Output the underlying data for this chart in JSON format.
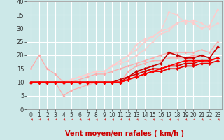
{
  "xlabel": "Vent moyen/en rafales ( km/h )",
  "xlim": [
    -0.5,
    23.5
  ],
  "ylim": [
    0,
    40
  ],
  "xticks": [
    0,
    1,
    2,
    3,
    4,
    5,
    6,
    7,
    8,
    9,
    10,
    11,
    12,
    13,
    14,
    15,
    16,
    17,
    18,
    19,
    20,
    21,
    22,
    23
  ],
  "yticks": [
    0,
    5,
    10,
    15,
    20,
    25,
    30,
    35,
    40
  ],
  "bg_color": "#cce8e8",
  "grid_color": "#b0d4d4",
  "lines": [
    {
      "x": [
        0,
        1,
        2,
        3,
        4,
        5,
        6,
        7,
        8,
        9,
        10,
        11,
        12,
        13,
        14,
        15,
        16,
        17,
        18,
        19,
        20,
        21,
        22,
        23
      ],
      "y": [
        15,
        20,
        15,
        13,
        10,
        10,
        10,
        10,
        10,
        10,
        10,
        10,
        14,
        16,
        17,
        18,
        18,
        19,
        19,
        19,
        20,
        20,
        19,
        23
      ],
      "color": "#ffaaaa",
      "lw": 0.9,
      "marker": "D",
      "ms": 2.0
    },
    {
      "x": [
        0,
        1,
        2,
        3,
        4,
        5,
        6,
        7,
        8,
        9,
        10,
        11,
        12,
        13,
        14,
        15,
        16,
        17,
        18,
        19,
        20,
        21,
        22,
        23
      ],
      "y": [
        10,
        10,
        10,
        10,
        5,
        7,
        8,
        9,
        10,
        10,
        10,
        10,
        12,
        13,
        14,
        15,
        15,
        16,
        16,
        17,
        17,
        18,
        18,
        19
      ],
      "color": "#ffaaaa",
      "lw": 0.9,
      "marker": "D",
      "ms": 2.0
    },
    {
      "x": [
        0,
        1,
        2,
        3,
        4,
        5,
        6,
        7,
        8,
        9,
        10,
        11,
        12,
        13,
        14,
        15,
        16,
        17,
        18,
        19,
        20,
        21,
        22,
        23
      ],
      "y": [
        10,
        10,
        10,
        10,
        10,
        10,
        11,
        12,
        13,
        13,
        14,
        15,
        16,
        17,
        18,
        19,
        20,
        21,
        21,
        21,
        21,
        22,
        21,
        25
      ],
      "color": "#ffaaaa",
      "lw": 0.9,
      "marker": "D",
      "ms": 2.0
    },
    {
      "x": [
        0,
        1,
        2,
        3,
        4,
        5,
        6,
        7,
        8,
        9,
        10,
        11,
        12,
        13,
        14,
        15,
        16,
        17,
        18,
        19,
        20,
        21,
        22,
        23
      ],
      "y": [
        10,
        10,
        10,
        10,
        10,
        11,
        12,
        13,
        14,
        14,
        16,
        17,
        18,
        20,
        22,
        25,
        28,
        29,
        32,
        33,
        32,
        30,
        31,
        37
      ],
      "color": "#ffcccc",
      "lw": 0.9,
      "marker": "D",
      "ms": 2.0
    },
    {
      "x": [
        0,
        1,
        2,
        3,
        4,
        5,
        6,
        7,
        8,
        9,
        10,
        11,
        12,
        13,
        14,
        15,
        16,
        17,
        18,
        19,
        20,
        21,
        22,
        23
      ],
      "y": [
        10,
        10,
        10,
        10,
        10,
        11,
        12,
        13,
        14,
        14,
        16,
        18,
        20,
        22,
        25,
        27,
        29,
        36,
        35,
        32,
        33,
        32,
        30,
        32
      ],
      "color": "#ffcccc",
      "lw": 0.9,
      "marker": "D",
      "ms": 2.0
    },
    {
      "x": [
        0,
        1,
        2,
        3,
        4,
        5,
        6,
        7,
        8,
        9,
        10,
        11,
        12,
        13,
        14,
        15,
        16,
        17,
        18,
        19,
        20,
        21,
        22,
        23
      ],
      "y": [
        10,
        10,
        10,
        10,
        10,
        11,
        12,
        13,
        14,
        14,
        16,
        18,
        20,
        24,
        26,
        27,
        29,
        30,
        32,
        33,
        32,
        30,
        31,
        37
      ],
      "color": "#ffcccc",
      "lw": 0.9,
      "marker": "D",
      "ms": 2.0
    },
    {
      "x": [
        0,
        1,
        2,
        3,
        4,
        5,
        6,
        7,
        8,
        9,
        10,
        11,
        12,
        13,
        14,
        15,
        16,
        17,
        18,
        19,
        20,
        21,
        22,
        23
      ],
      "y": [
        10,
        10,
        10,
        10,
        10,
        10,
        10,
        10,
        10,
        10,
        10,
        11,
        12,
        14,
        15,
        16,
        17,
        21,
        20,
        19,
        19,
        20,
        19,
        23
      ],
      "color": "#cc0000",
      "lw": 1.2,
      "marker": "D",
      "ms": 2.5
    },
    {
      "x": [
        0,
        1,
        2,
        3,
        4,
        5,
        6,
        7,
        8,
        9,
        10,
        11,
        12,
        13,
        14,
        15,
        16,
        17,
        18,
        19,
        20,
        21,
        22,
        23
      ],
      "y": [
        10,
        10,
        10,
        10,
        10,
        10,
        10,
        10,
        10,
        10,
        10,
        10,
        12,
        13,
        14,
        15,
        15,
        16,
        16,
        17,
        17,
        18,
        18,
        19
      ],
      "color": "#dd0000",
      "lw": 1.2,
      "marker": "D",
      "ms": 2.5
    },
    {
      "x": [
        0,
        1,
        2,
        3,
        4,
        5,
        6,
        7,
        8,
        9,
        10,
        11,
        12,
        13,
        14,
        15,
        16,
        17,
        18,
        19,
        20,
        21,
        22,
        23
      ],
      "y": [
        10,
        10,
        10,
        10,
        10,
        10,
        10,
        10,
        10,
        10,
        10,
        10,
        11,
        12,
        13,
        14,
        14,
        15,
        15,
        16,
        16,
        17,
        17,
        18
      ],
      "color": "#ee0000",
      "lw": 1.2,
      "marker": "D",
      "ms": 2.5
    },
    {
      "x": [
        0,
        1,
        2,
        3,
        4,
        5,
        6,
        7,
        8,
        9,
        10,
        11,
        12,
        13,
        14,
        15,
        16,
        17,
        18,
        19,
        20,
        21,
        22,
        23
      ],
      "y": [
        10,
        10,
        10,
        10,
        10,
        10,
        10,
        10,
        10,
        10,
        10,
        10,
        11,
        12,
        13,
        14,
        15,
        16,
        17,
        18,
        18,
        18,
        18,
        19
      ],
      "color": "#ff0000",
      "lw": 1.2,
      "marker": "D",
      "ms": 2.5
    }
  ],
  "arrow_color": "#cc0000",
  "xlabel_color": "#cc0000",
  "xlabel_fontsize": 7,
  "tick_fontsize": 6
}
